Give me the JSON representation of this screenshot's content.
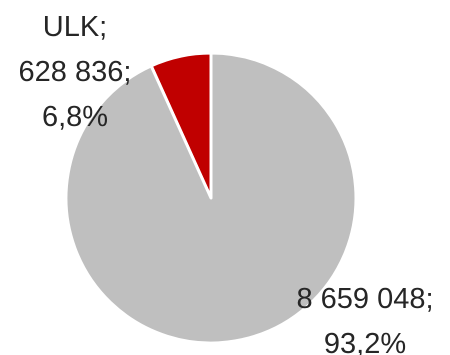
{
  "chart_data": {
    "type": "pie",
    "title": "",
    "start_angle_deg": 0,
    "direction": "counterclockwise",
    "legend": "none",
    "slices": [
      {
        "name": "ULK",
        "value": 628836,
        "value_label": "628 836",
        "percent": 6.8,
        "percent_label": "6,8%",
        "color": "#c00000",
        "label_lines": [
          "ULK;",
          "628 836;",
          "6,8%"
        ]
      },
      {
        "name": "",
        "value": 8659048,
        "value_label": "8 659 048",
        "percent": 93.2,
        "percent_label": "93,2%",
        "color": "#bfbfbf",
        "label_lines": [
          "8 659 048;",
          "93,2%"
        ]
      }
    ],
    "separator_color": "#ffffff"
  }
}
